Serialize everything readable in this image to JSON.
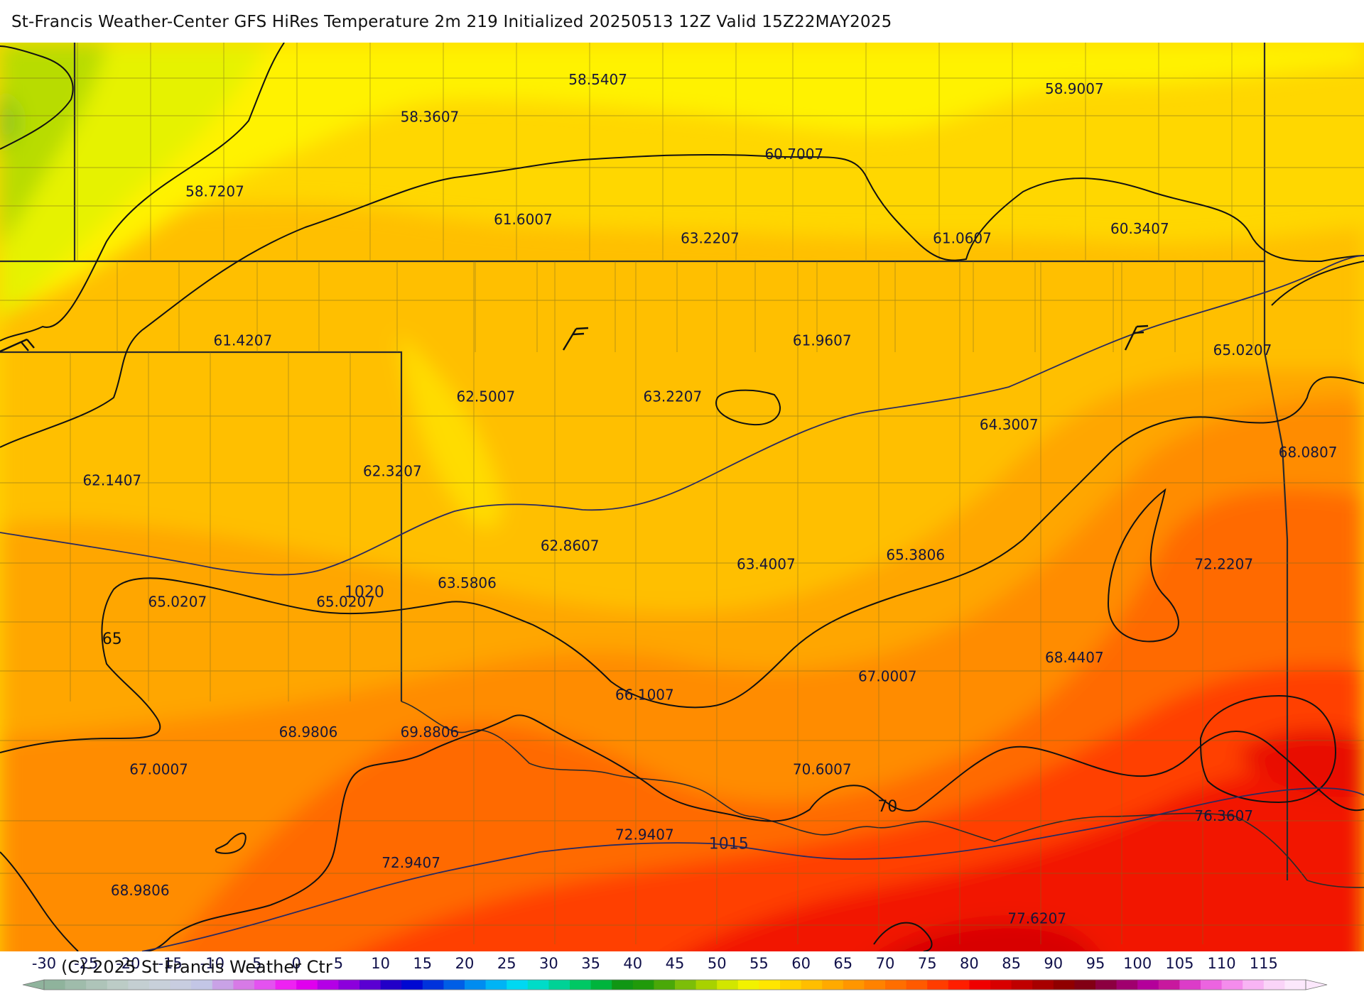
{
  "header": {
    "title": "St-Francis Weather-Center GFS HiRes Temperature 2m  219 Initialized 20250513 12Z Valid 15Z22MAY2025"
  },
  "footer": {
    "copyright": "(C)-2025 St Francis Weather Ctr"
  },
  "colors": {
    "green_dark": "#7cc21a",
    "yellow_green": "#e6f200",
    "yellow": "#fff200",
    "gold": "#ffd700",
    "amber": "#ffbf00",
    "orange_light": "#ffa600",
    "orange": "#ff8c00",
    "orange_dark": "#ff6a00",
    "red_orange": "#ff4000",
    "red": "#f21800",
    "deep_red": "#d80000"
  },
  "temperature_labels": [
    {
      "text": "58.5407",
      "lon": -98.4,
      "lat": 40.6
    },
    {
      "text": "58.9007",
      "lon": -93.3,
      "lat": 40.5
    },
    {
      "text": "58.3607",
      "lon": -100.2,
      "lat": 40.2
    },
    {
      "text": "60.7007",
      "lon": -96.3,
      "lat": 39.8
    },
    {
      "text": "58.7207",
      "lon": -102.5,
      "lat": 39.4
    },
    {
      "text": "61.6007",
      "lon": -99.2,
      "lat": 39.1
    },
    {
      "text": "63.2207",
      "lon": -97.2,
      "lat": 38.9
    },
    {
      "text": "61.0607",
      "lon": -94.5,
      "lat": 38.9
    },
    {
      "text": "60.3407",
      "lon": -92.6,
      "lat": 39.0
    },
    {
      "text": "61.4207",
      "lon": -102.2,
      "lat": 37.8
    },
    {
      "text": "61.9607",
      "lon": -96.0,
      "lat": 37.8
    },
    {
      "text": "65.0207",
      "lon": -91.5,
      "lat": 37.7
    },
    {
      "text": "62.5007",
      "lon": -99.6,
      "lat": 37.2
    },
    {
      "text": "63.2207",
      "lon": -97.6,
      "lat": 37.2
    },
    {
      "text": "64.3007",
      "lon": -94.0,
      "lat": 36.9
    },
    {
      "text": "68.0807",
      "lon": -90.8,
      "lat": 36.6
    },
    {
      "text": "62.1407",
      "lon": -103.6,
      "lat": 36.3
    },
    {
      "text": "62.3207",
      "lon": -100.6,
      "lat": 36.4
    },
    {
      "text": "62.8607",
      "lon": -98.7,
      "lat": 35.6
    },
    {
      "text": "63.4007",
      "lon": -96.6,
      "lat": 35.4
    },
    {
      "text": "65.3806",
      "lon": -95.0,
      "lat": 35.5
    },
    {
      "text": "72.2207",
      "lon": -91.7,
      "lat": 35.4
    },
    {
      "text": "63.5806",
      "lon": -99.8,
      "lat": 35.2
    },
    {
      "text": "65.0207",
      "lon": -102.9,
      "lat": 35.0
    },
    {
      "text": "65.0207",
      "lon": -101.1,
      "lat": 35.0
    },
    {
      "text": "68.4407",
      "lon": -93.3,
      "lat": 34.4
    },
    {
      "text": "67.0007",
      "lon": -95.3,
      "lat": 34.2
    },
    {
      "text": "66.1007",
      "lon": -97.9,
      "lat": 34.0
    },
    {
      "text": "68.9806",
      "lon": -101.5,
      "lat": 33.6
    },
    {
      "text": "69.8806",
      "lon": -100.2,
      "lat": 33.6
    },
    {
      "text": "67.0007",
      "lon": -103.1,
      "lat": 33.2
    },
    {
      "text": "70.6007",
      "lon": -96.0,
      "lat": 33.2
    },
    {
      "text": "76.3607",
      "lon": -91.7,
      "lat": 32.7
    },
    {
      "text": "72.9407",
      "lon": -97.9,
      "lat": 32.5
    },
    {
      "text": "72.9407",
      "lon": -100.4,
      "lat": 32.2
    },
    {
      "text": "68.9806",
      "lon": -103.3,
      "lat": 31.9
    },
    {
      "text": "77.6207",
      "lon": -93.7,
      "lat": 31.6
    }
  ],
  "contour_labels": [
    {
      "text": "1020",
      "lon": -100.9,
      "lat": 35.1,
      "kind": "isobar"
    },
    {
      "text": "65",
      "lon": -103.6,
      "lat": 34.6,
      "kind": "isotherm"
    },
    {
      "text": "70",
      "lon": -95.3,
      "lat": 32.8,
      "kind": "isotherm"
    },
    {
      "text": "1015",
      "lon": -97.0,
      "lat": 32.4,
      "kind": "isobar"
    }
  ],
  "colorbar": {
    "ticks": [
      "-30",
      "-25",
      "-20",
      "-15",
      "-10",
      "-5",
      "0",
      "5",
      "10",
      "15",
      "20",
      "25",
      "30",
      "35",
      "40",
      "45",
      "50",
      "55",
      "60",
      "65",
      "70",
      "75",
      "80",
      "85",
      "90",
      "95",
      "100",
      "105",
      "110",
      "115"
    ],
    "tick_values": [
      -30,
      -25,
      -20,
      -15,
      -10,
      -5,
      0,
      5,
      10,
      15,
      20,
      25,
      30,
      35,
      40,
      45,
      50,
      55,
      60,
      65,
      70,
      75,
      80,
      85,
      90,
      95,
      100,
      105,
      110,
      115
    ],
    "segment_colors": [
      "#8fb39c",
      "#9fbcab",
      "#aec4b9",
      "#bcccc6",
      "#c4cfd2",
      "#c8d0da",
      "#c8cde0",
      "#c3c6e6",
      "#c9a2e6",
      "#d77ae6",
      "#e452f0",
      "#ee22f2",
      "#e000ee",
      "#b400e6",
      "#8c00dc",
      "#5a00d2",
      "#2200c8",
      "#0008d2",
      "#0032dc",
      "#005ee6",
      "#008cf0",
      "#00b4f5",
      "#00d8f2",
      "#00dcc8",
      "#00d296",
      "#00c864",
      "#00b43c",
      "#109614",
      "#209a0a",
      "#4aa808",
      "#7cbe08",
      "#a8d200",
      "#d2e600",
      "#f2f200",
      "#ffe600",
      "#ffd200",
      "#ffbe00",
      "#ffaa00",
      "#ff9600",
      "#ff8200",
      "#ff6e00",
      "#ff5a00",
      "#ff3c00",
      "#ff1e00",
      "#f00000",
      "#d80000",
      "#c00000",
      "#a80000",
      "#900000",
      "#820014",
      "#8c0040",
      "#a0006e",
      "#b4009a",
      "#c8189e",
      "#dc3cc8",
      "#ec64e0",
      "#f48cec",
      "#f8b4f4",
      "#fad4f8",
      "#fce8fc"
    ]
  }
}
